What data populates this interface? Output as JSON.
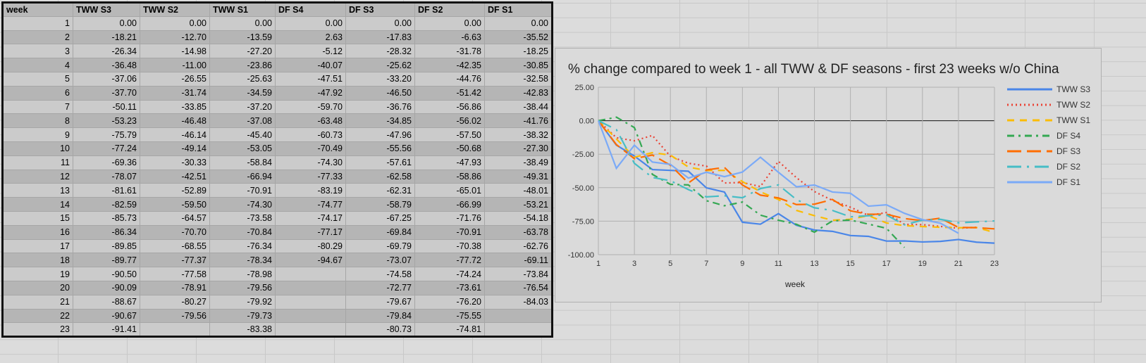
{
  "table": {
    "headers": [
      "week",
      "TWW S3",
      "TWW S2",
      "TWW S1",
      "DF S4",
      "DF S3",
      "DF S2",
      "DF S1"
    ],
    "rows": [
      [
        "1",
        "0.00",
        "0.00",
        "0.00",
        "0.00",
        "0.00",
        "0.00",
        "0.00"
      ],
      [
        "2",
        "-18.21",
        "-12.70",
        "-13.59",
        "2.63",
        "-17.83",
        "-6.63",
        "-35.52"
      ],
      [
        "3",
        "-26.34",
        "-14.98",
        "-27.20",
        "-5.12",
        "-28.32",
        "-31.78",
        "-18.25"
      ],
      [
        "4",
        "-36.48",
        "-11.00",
        "-23.86",
        "-40.07",
        "-25.62",
        "-42.35",
        "-30.85"
      ],
      [
        "5",
        "-37.06",
        "-26.55",
        "-25.63",
        "-47.51",
        "-33.20",
        "-44.76",
        "-32.58"
      ],
      [
        "6",
        "-37.70",
        "-31.74",
        "-34.59",
        "-47.92",
        "-46.50",
        "-51.42",
        "-42.83"
      ],
      [
        "7",
        "-50.11",
        "-33.85",
        "-37.20",
        "-59.70",
        "-36.76",
        "-56.86",
        "-38.44"
      ],
      [
        "8",
        "-53.23",
        "-46.48",
        "-37.08",
        "-63.48",
        "-34.85",
        "-56.02",
        "-41.76"
      ],
      [
        "9",
        "-75.79",
        "-46.14",
        "-45.40",
        "-60.73",
        "-47.96",
        "-57.50",
        "-38.32"
      ],
      [
        "10",
        "-77.24",
        "-49.14",
        "-53.05",
        "-70.49",
        "-55.56",
        "-50.68",
        "-27.30"
      ],
      [
        "11",
        "-69.36",
        "-30.33",
        "-58.84",
        "-74.30",
        "-57.61",
        "-47.93",
        "-38.49"
      ],
      [
        "12",
        "-78.07",
        "-42.51",
        "-66.94",
        "-77.33",
        "-62.58",
        "-58.86",
        "-49.31"
      ],
      [
        "13",
        "-81.61",
        "-52.89",
        "-70.91",
        "-83.19",
        "-62.31",
        "-65.01",
        "-48.01"
      ],
      [
        "14",
        "-82.59",
        "-59.50",
        "-74.30",
        "-74.77",
        "-58.79",
        "-66.99",
        "-53.21"
      ],
      [
        "15",
        "-85.73",
        "-64.57",
        "-73.58",
        "-74.17",
        "-67.25",
        "-71.76",
        "-54.18"
      ],
      [
        "16",
        "-86.34",
        "-70.70",
        "-70.84",
        "-77.17",
        "-69.84",
        "-70.91",
        "-63.78"
      ],
      [
        "17",
        "-89.85",
        "-68.55",
        "-76.34",
        "-80.29",
        "-69.79",
        "-70.38",
        "-62.76"
      ],
      [
        "18",
        "-89.77",
        "-77.37",
        "-78.34",
        "-94.67",
        "-73.07",
        "-77.72",
        "-69.11"
      ],
      [
        "19",
        "-90.50",
        "-77.58",
        "-78.98",
        "",
        "-74.58",
        "-74.24",
        "-73.84"
      ],
      [
        "20",
        "-90.09",
        "-78.91",
        "-79.56",
        "",
        "-72.77",
        "-73.61",
        "-76.54"
      ],
      [
        "21",
        "-88.67",
        "-80.27",
        "-79.92",
        "",
        "-79.67",
        "-76.20",
        "-84.03"
      ],
      [
        "22",
        "-90.67",
        "-79.56",
        "-79.73",
        "",
        "-79.84",
        "-75.55",
        ""
      ],
      [
        "23",
        "-91.41",
        "",
        "-83.38",
        "",
        "-80.73",
        "-74.81",
        ""
      ]
    ]
  },
  "chart_data": {
    "type": "line",
    "title": "% change compared to week 1 - all TWW & DF seasons - first 23 weeks w/o China",
    "xlabel": "week",
    "ylabel": "",
    "ylim": [
      -100,
      25
    ],
    "yticks": [
      "25.00",
      "0.00",
      "-25.00",
      "-50.00",
      "-75.00",
      "-100.00"
    ],
    "xticks": [
      "1",
      "3",
      "5",
      "7",
      "9",
      "11",
      "13",
      "15",
      "17",
      "19",
      "21",
      "23"
    ],
    "legend_position": "right",
    "series": [
      {
        "name": "TWW S3",
        "color": "#4a86e8",
        "dash": "",
        "column": 1
      },
      {
        "name": "TWW S2",
        "color": "#ea4335",
        "dash": "2 4",
        "column": 2
      },
      {
        "name": "TWW S1",
        "color": "#fbbc04",
        "dash": "10 8",
        "column": 3
      },
      {
        "name": "DF S4",
        "color": "#34a853",
        "dash": "10 6 3 6",
        "column": 4
      },
      {
        "name": "DF S3",
        "color": "#ff6d01",
        "dash": "20 8",
        "column": 5
      },
      {
        "name": "DF S2",
        "color": "#46bdc6",
        "dash": "20 8 3 8",
        "column": 6
      },
      {
        "name": "DF S1",
        "color": "#7baaf7",
        "dash": "",
        "column": 7
      }
    ]
  }
}
